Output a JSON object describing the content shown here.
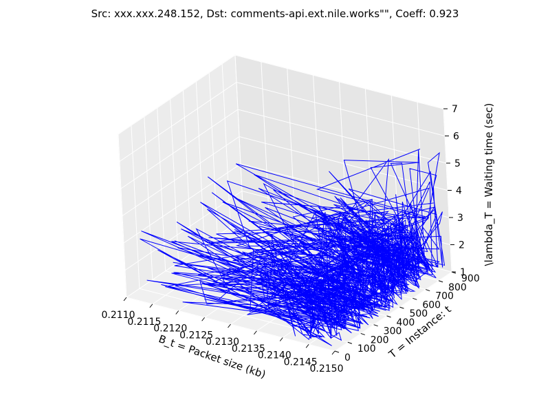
{
  "chart_data": {
    "type": "line",
    "projection": "3d",
    "title": "Src: xxx.xxx.248.152, Dst: comments-api.ext.nile.works\"\", Coeff: 0.923",
    "xlabel": "B_t = Packet size (kb)",
    "ylabel": "T = Instance: t",
    "zlabel": "\\lambda_T = Waiting time (sec)",
    "x_ticks": [
      "0.2110",
      "0.2115",
      "0.2120",
      "0.2125",
      "0.2130",
      "0.2135",
      "0.2140",
      "0.2145",
      "0.2150"
    ],
    "y_ticks": [
      "0",
      "100",
      "200",
      "300",
      "400",
      "500",
      "600",
      "700",
      "800",
      "900"
    ],
    "z_ticks": [
      "1",
      "2",
      "3",
      "4",
      "5",
      "6",
      "7"
    ],
    "xlim": [
      0.211,
      0.215
    ],
    "ylim": [
      0,
      900
    ],
    "zlim": [
      1,
      7
    ],
    "grid": true,
    "series": [
      {
        "color": "#0000ff",
        "n_points": 900
      }
    ]
  }
}
